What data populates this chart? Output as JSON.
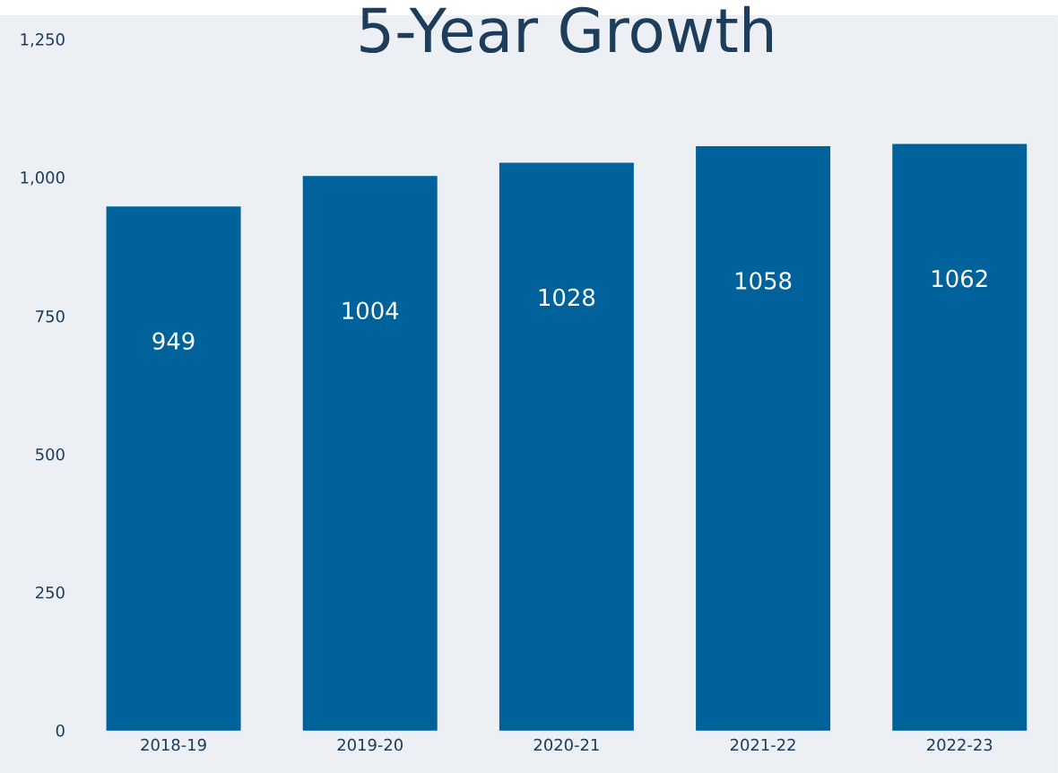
{
  "chart_data": {
    "type": "bar",
    "title": "5-Year Growth",
    "categories": [
      "2018-19",
      "2019-20",
      "2020-21",
      "2021-22",
      "2022-23"
    ],
    "values": [
      949,
      1004,
      1028,
      1058,
      1062
    ],
    "color": "#00629b",
    "ylim": [
      0,
      1250
    ],
    "yticks": [
      0,
      250,
      500,
      750,
      {
        "value": 1000,
        "label": "1,000"
      },
      {
        "value": 1250,
        "label": "1,250"
      }
    ],
    "data_labels": true,
    "grid": false
  }
}
